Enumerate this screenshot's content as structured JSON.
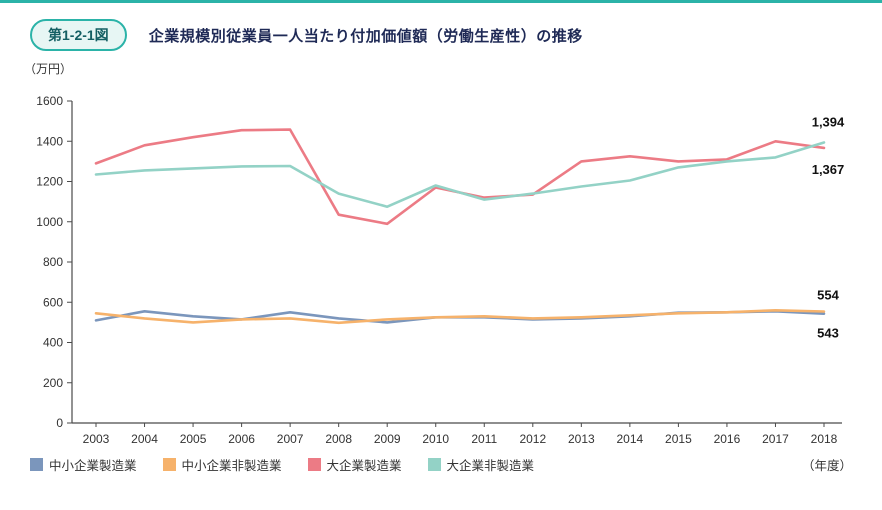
{
  "header": {
    "figure_label": "第1-2-1図",
    "title": "企業規模別従業員一人当たり付加価値額（労働生産性）の推移"
  },
  "colors": {
    "accent_teal": "#2bb3a8",
    "axis": "#4a4a4a"
  },
  "chart_data": {
    "type": "line",
    "unit_label": "（万円）",
    "x_axis_label": "（年度）",
    "categories": [
      "2003",
      "2004",
      "2005",
      "2006",
      "2007",
      "2008",
      "2009",
      "2010",
      "2011",
      "2012",
      "2013",
      "2014",
      "2015",
      "2016",
      "2017",
      "2018"
    ],
    "ylim": [
      0,
      1600
    ],
    "ytick_step": 200,
    "grid": false,
    "legend_position": "bottom",
    "series": [
      {
        "name": "中小企業製造業",
        "color": "#7b96bc",
        "end_label": "543",
        "end_label_dy": 24,
        "values": [
          510,
          555,
          530,
          515,
          550,
          520,
          500,
          525,
          525,
          515,
          520,
          530,
          548,
          550,
          555,
          543
        ]
      },
      {
        "name": "中小企業非製造業",
        "color": "#f6b26b",
        "end_label": "554",
        "end_label_dy": -12,
        "values": [
          545,
          520,
          500,
          515,
          520,
          498,
          515,
          525,
          530,
          520,
          525,
          535,
          545,
          550,
          560,
          554
        ]
      },
      {
        "name": "大企業製造業",
        "color": "#ec7b85",
        "end_label": "1,367",
        "end_label_dy": 26,
        "values": [
          1290,
          1380,
          1420,
          1455,
          1458,
          1035,
          990,
          1170,
          1120,
          1135,
          1300,
          1325,
          1300,
          1310,
          1400,
          1367
        ]
      },
      {
        "name": "大企業非製造業",
        "color": "#93d2c6",
        "end_label": "1,394",
        "end_label_dy": -16,
        "values": [
          1235,
          1255,
          1265,
          1275,
          1277,
          1140,
          1075,
          1180,
          1110,
          1140,
          1175,
          1205,
          1270,
          1300,
          1320,
          1394
        ]
      }
    ]
  }
}
